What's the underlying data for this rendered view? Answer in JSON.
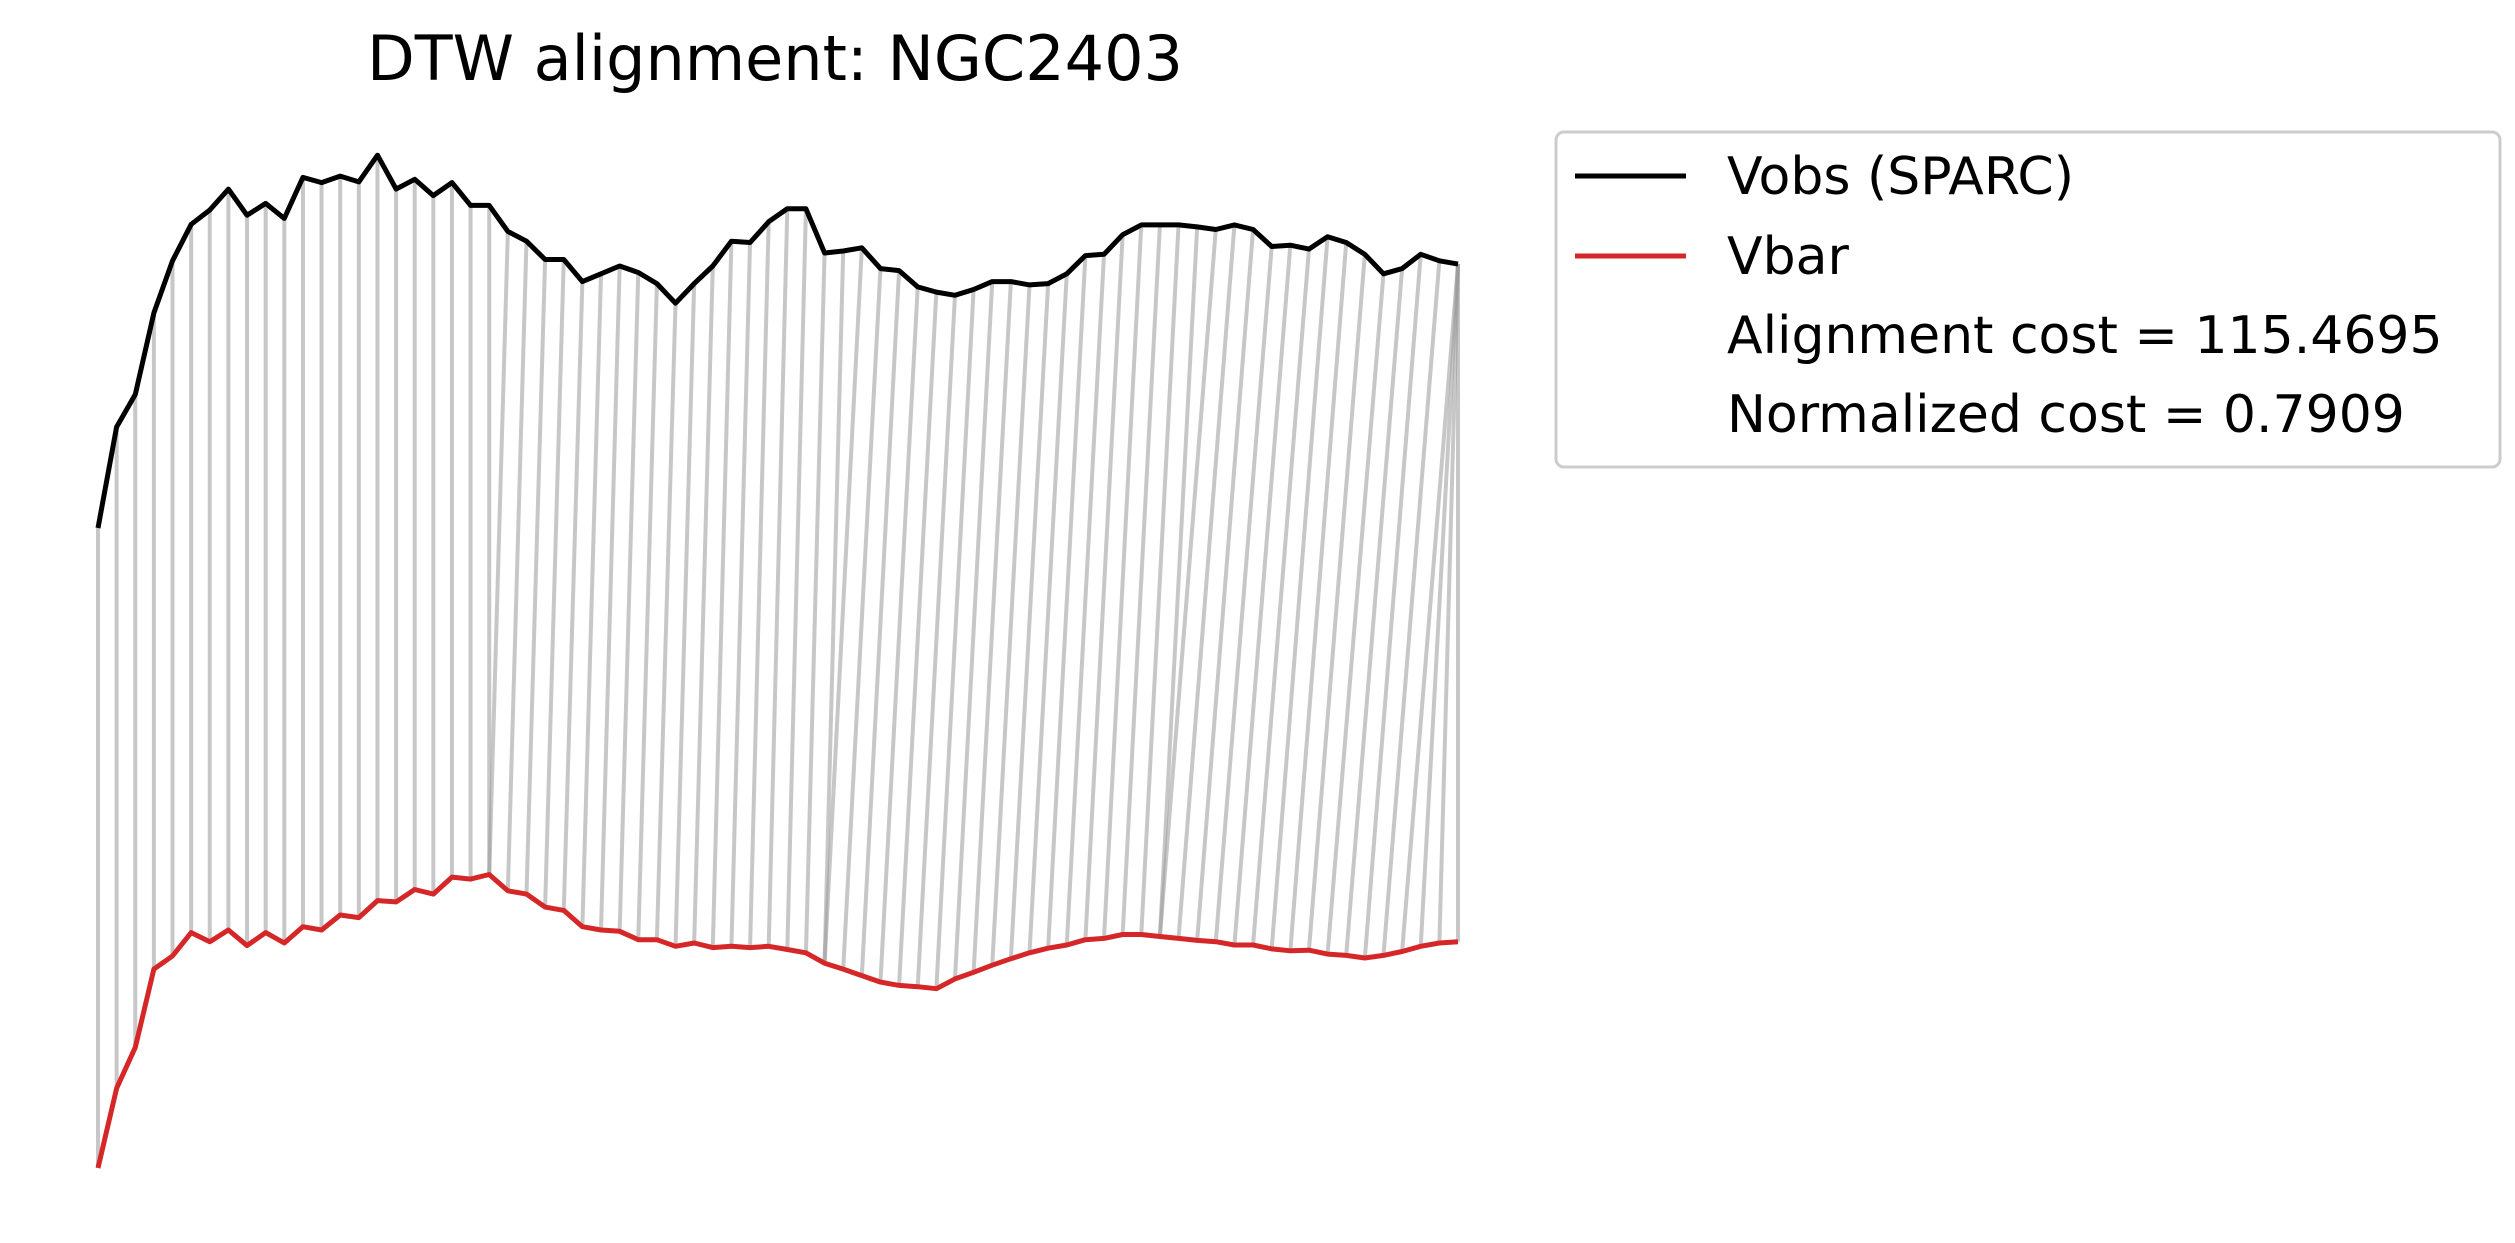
{
  "chart_data": {
    "type": "line",
    "title": "DTW alignment: NGC2403",
    "xlabel": "",
    "ylabel": "",
    "axes_visible": false,
    "grid": false,
    "legend_position": "outside-top-right",
    "colors": {
      "vobs": "#000000",
      "vbar": "#d62728",
      "alignment_lines": "#999999"
    },
    "series": [
      {
        "name": "Vobs (SPARC)",
        "color": "#000000",
        "values": [
          0.0,
          0.155,
          0.205,
          0.33,
          0.41,
          0.466,
          0.488,
          0.52,
          0.48,
          0.498,
          0.475,
          0.538,
          0.53,
          0.54,
          0.531,
          0.572,
          0.52,
          0.535,
          0.51,
          0.53,
          0.495,
          0.495,
          0.455,
          0.44,
          0.412,
          0.412,
          0.378,
          0.39,
          0.402,
          0.392,
          0.375,
          0.345,
          0.375,
          0.402,
          0.44,
          0.438,
          0.47,
          0.49,
          0.49,
          0.422,
          0.425,
          0.43,
          0.398,
          0.395,
          0.37,
          0.362,
          0.357,
          0.366,
          0.378,
          0.378,
          0.373,
          0.375,
          0.39,
          0.418,
          0.42,
          0.45,
          0.465,
          0.465,
          0.465,
          0.462,
          0.458,
          0.465,
          0.458,
          0.432,
          0.434,
          0.428,
          0.447,
          0.438,
          0.42,
          0.39,
          0.398,
          0.42,
          0.41,
          0.405
        ]
      },
      {
        "name": "Vbar",
        "color": "#d62728",
        "values": [
          0.0,
          0.122,
          0.185,
          0.305,
          0.325,
          0.361,
          0.347,
          0.365,
          0.341,
          0.361,
          0.345,
          0.37,
          0.365,
          0.388,
          0.384,
          0.41,
          0.408,
          0.427,
          0.42,
          0.446,
          0.443,
          0.45,
          0.425,
          0.42,
          0.4,
          0.395,
          0.37,
          0.365,
          0.363,
          0.35,
          0.35,
          0.34,
          0.345,
          0.338,
          0.34,
          0.338,
          0.34,
          0.335,
          0.33,
          0.314,
          0.305,
          0.295,
          0.285,
          0.28,
          0.278,
          0.275,
          0.29,
          0.3,
          0.311,
          0.321,
          0.33,
          0.337,
          0.342,
          0.35,
          0.352,
          0.358,
          0.358,
          0.355,
          0.352,
          0.349,
          0.347,
          0.342,
          0.342,
          0.336,
          0.333,
          0.334,
          0.328,
          0.326,
          0.322,
          0.326,
          0.332,
          0.34,
          0.345,
          0.347
        ]
      }
    ],
    "legend": {
      "entries": [
        {
          "label": "Vobs (SPARC)",
          "color": "#000000"
        },
        {
          "label": "Vbar",
          "color": "#d62728"
        }
      ],
      "alignment_cost": "Alignment cost = 115.4695",
      "normalized_cost": "Normalized cost = 0.7909"
    }
  }
}
